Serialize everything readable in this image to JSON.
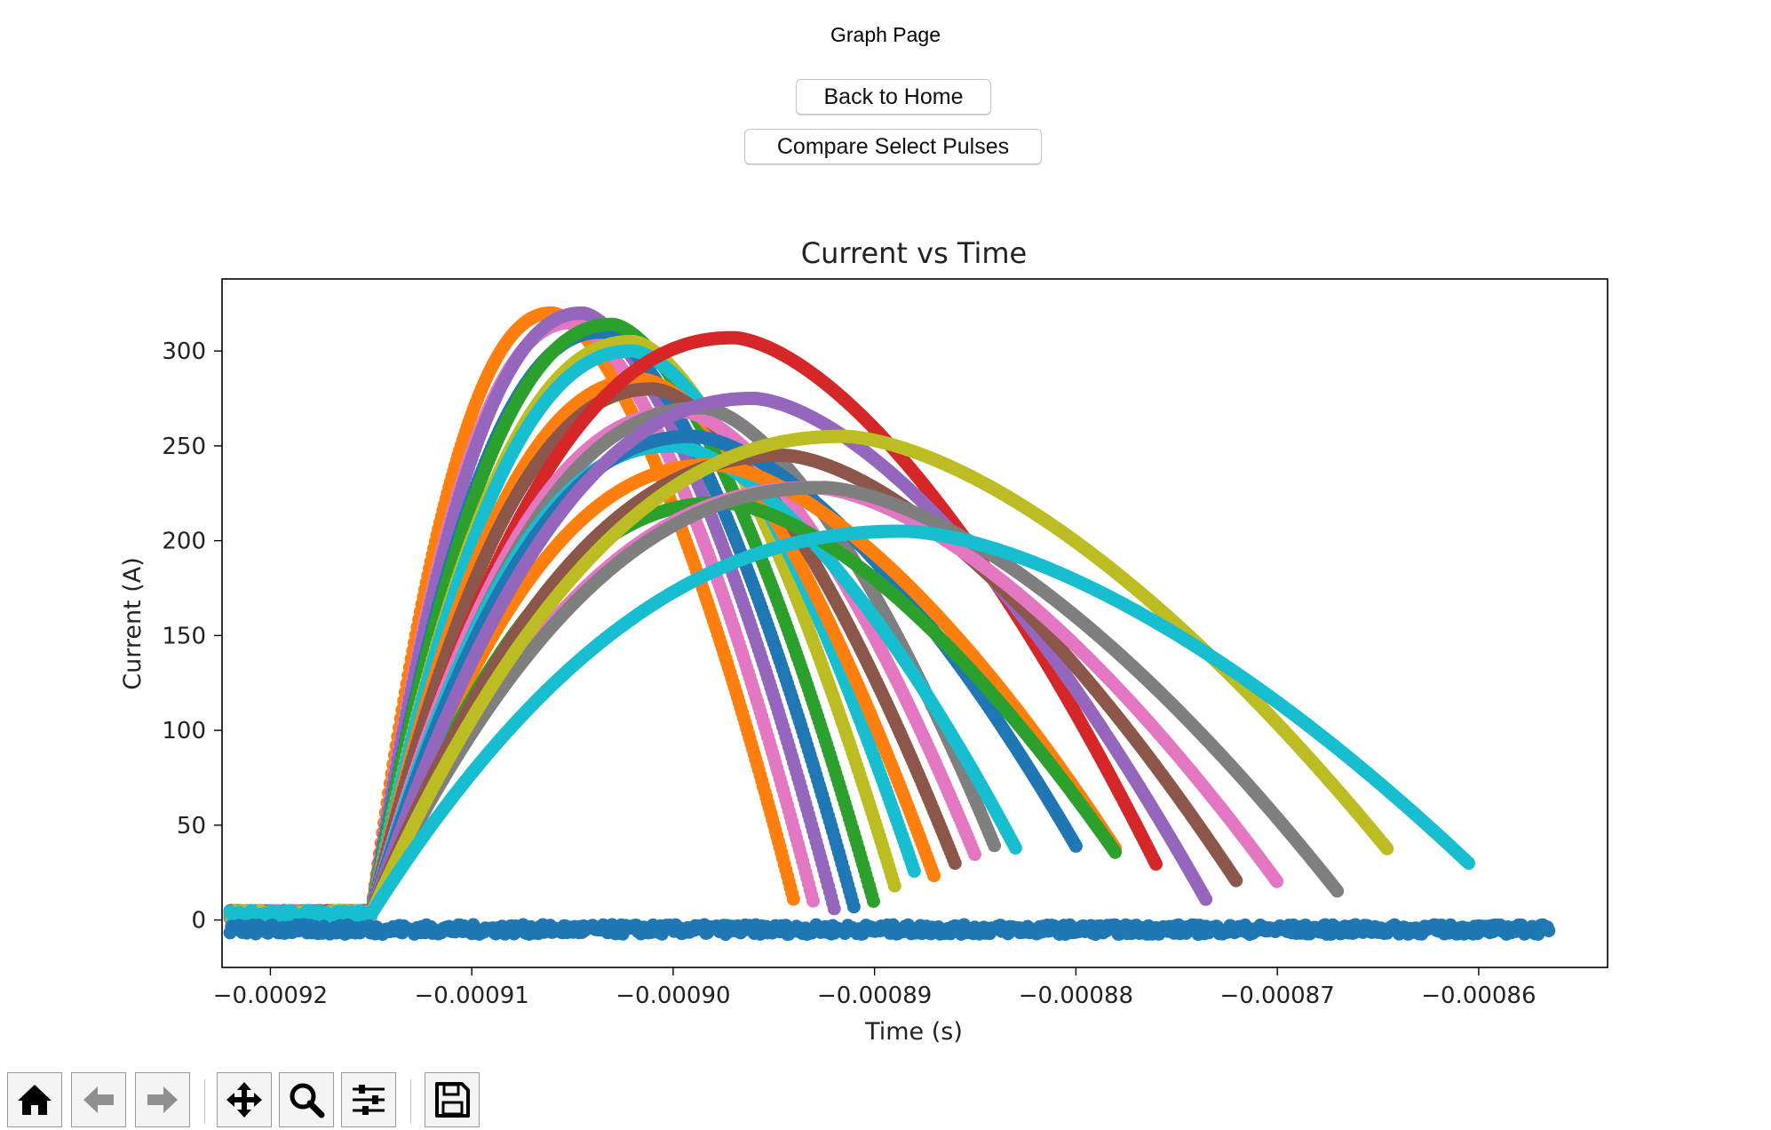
{
  "page": {
    "title": "Graph Page"
  },
  "buttons": {
    "back_home": "Back to Home",
    "compare": "Compare Select Pulses"
  },
  "toolbar": {
    "items": [
      {
        "icon": "home-icon",
        "enabled": true
      },
      {
        "icon": "back-arrow-icon",
        "enabled": false
      },
      {
        "icon": "forward-arrow-icon",
        "enabled": false
      },
      {
        "icon": "pan-icon",
        "enabled": true
      },
      {
        "icon": "zoom-icon",
        "enabled": true
      },
      {
        "icon": "configure-subplots-icon",
        "enabled": true
      },
      {
        "icon": "save-icon",
        "enabled": true
      }
    ]
  },
  "chart_data": {
    "type": "scatter",
    "title": "Current vs Time",
    "xlabel": "Time (s)",
    "ylabel": "Current (A)",
    "xlim": [
      -0.0009224,
      -0.0008536
    ],
    "ylim": [
      -25,
      338
    ],
    "xticks": [
      -0.00092,
      -0.00091,
      -0.0009,
      -0.00089,
      -0.00088,
      -0.00087,
      -0.00086
    ],
    "xtick_labels": [
      "−0.00092",
      "−0.00091",
      "−0.00090",
      "−0.00089",
      "−0.00088",
      "−0.00087",
      "−0.00086"
    ],
    "yticks": [
      0,
      50,
      100,
      150,
      200,
      250,
      300
    ],
    "ytick_labels": [
      "0",
      "50",
      "100",
      "150",
      "200",
      "250",
      "300"
    ],
    "grid": false,
    "legend": "none",
    "onset": {
      "x": -0.000915,
      "y": 3
    },
    "pulses": [
      {
        "color": "#ff7f0e",
        "peak_x": -0.000906,
        "peak_y": 320,
        "end_x": -0.000894,
        "end_y": 10
      },
      {
        "color": "#e377c2",
        "peak_x": -0.000905,
        "peak_y": 315,
        "end_x": -0.000893,
        "end_y": 8
      },
      {
        "color": "#9467bd",
        "peak_x": -0.0009045,
        "peak_y": 320,
        "end_x": -0.000892,
        "end_y": 6
      },
      {
        "color": "#1f77b4",
        "peak_x": -0.0009035,
        "peak_y": 310,
        "end_x": -0.000891,
        "end_y": 6
      },
      {
        "color": "#2ca02c",
        "peak_x": -0.000903,
        "peak_y": 314,
        "end_x": -0.00089,
        "end_y": 8
      },
      {
        "color": "#bcbd22",
        "peak_x": -0.000902,
        "peak_y": 305,
        "end_x": -0.000889,
        "end_y": 18
      },
      {
        "color": "#17becf",
        "peak_x": -0.000902,
        "peak_y": 300,
        "end_x": -0.000888,
        "end_y": 25
      },
      {
        "color": "#ff7f0e",
        "peak_x": -0.0009015,
        "peak_y": 285,
        "end_x": -0.000887,
        "end_y": 22
      },
      {
        "color": "#8c564b",
        "peak_x": -0.000901,
        "peak_y": 280,
        "end_x": -0.000886,
        "end_y": 30
      },
      {
        "color": "#d62728",
        "peak_x": -0.000897,
        "peak_y": 307,
        "end_x": -0.000876,
        "end_y": 29
      },
      {
        "color": "#e377c2",
        "peak_x": -0.0008995,
        "peak_y": 268,
        "end_x": -0.000885,
        "end_y": 34
      },
      {
        "color": "#7f7f7f",
        "peak_x": -0.0008985,
        "peak_y": 270,
        "end_x": -0.000884,
        "end_y": 38
      },
      {
        "color": "#17becf",
        "peak_x": -0.0009,
        "peak_y": 250,
        "end_x": -0.000883,
        "end_y": 38
      },
      {
        "color": "#1f77b4",
        "peak_x": -0.000899,
        "peak_y": 255,
        "end_x": -0.00088,
        "end_y": 39
      },
      {
        "color": "#ff7f0e",
        "peak_x": -0.000898,
        "peak_y": 240,
        "end_x": -0.000878,
        "end_y": 37
      },
      {
        "color": "#2ca02c",
        "peak_x": -0.0008975,
        "peak_y": 220,
        "end_x": -0.000878,
        "end_y": 35
      },
      {
        "color": "#9467bd",
        "peak_x": -0.000896,
        "peak_y": 275,
        "end_x": -0.0008735,
        "end_y": 10
      },
      {
        "color": "#8c564b",
        "peak_x": -0.0008945,
        "peak_y": 245,
        "end_x": -0.000872,
        "end_y": 20
      },
      {
        "color": "#e377c2",
        "peak_x": -0.000893,
        "peak_y": 228,
        "end_x": -0.00087,
        "end_y": 20
      },
      {
        "color": "#7f7f7f",
        "peak_x": -0.0008925,
        "peak_y": 228,
        "end_x": -0.000867,
        "end_y": 15
      },
      {
        "color": "#bcbd22",
        "peak_x": -0.0008915,
        "peak_y": 255,
        "end_x": -0.0008645,
        "end_y": 37
      },
      {
        "color": "#17becf",
        "peak_x": -0.0008885,
        "peak_y": 205,
        "end_x": -0.0008605,
        "end_y": 30
      }
    ],
    "baseline": {
      "color": "#1f77b4",
      "x_start": -0.000922,
      "x_end": -0.0008565,
      "y_mean": -5
    }
  }
}
